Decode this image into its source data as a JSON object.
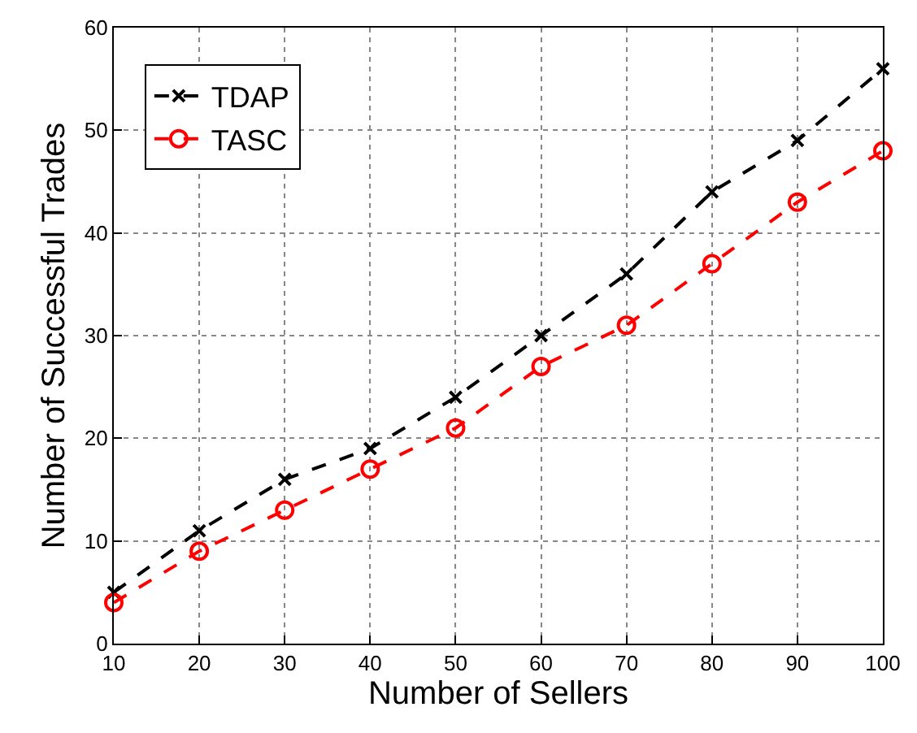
{
  "chart_data": {
    "type": "line",
    "xlabel": "Number of Sellers",
    "ylabel": "Number of Successful Trades",
    "x": [
      10,
      20,
      30,
      40,
      50,
      60,
      70,
      80,
      90,
      100
    ],
    "series": [
      {
        "name": "TDAP",
        "color": "#000000",
        "marker": "cross",
        "values": [
          5,
          11,
          16,
          19,
          24,
          30,
          36,
          44,
          49,
          56
        ]
      },
      {
        "name": "TASC",
        "color": "#ff0000",
        "marker": "circle",
        "values": [
          4,
          9,
          13,
          17,
          21,
          27,
          31,
          37,
          43,
          48
        ]
      }
    ],
    "xlim": [
      10,
      100
    ],
    "xticks": [
      10,
      20,
      30,
      40,
      50,
      60,
      70,
      80,
      90,
      100
    ],
    "ylim": [
      0,
      60
    ],
    "yticks": [
      0,
      10,
      20,
      30,
      40,
      50,
      60
    ],
    "grid": true,
    "legend": "top left",
    "line_style": "dashed"
  }
}
